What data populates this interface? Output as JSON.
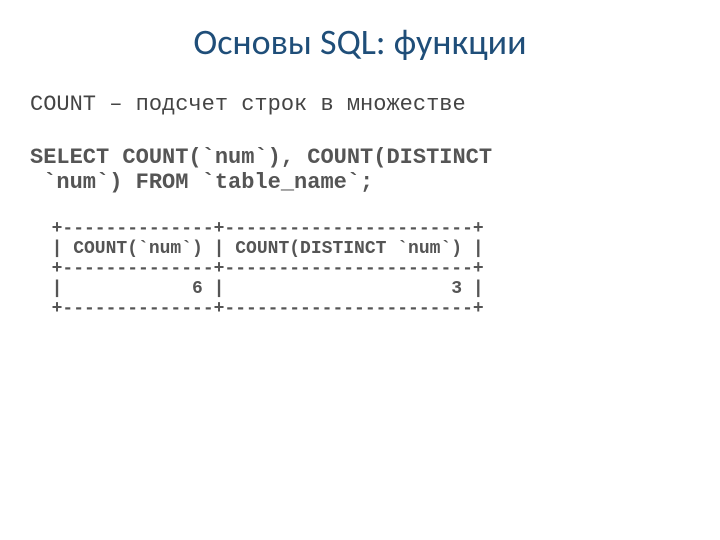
{
  "title": {
    "text": "Основы SQL: функции",
    "color": "#1f4e79",
    "fontsize": 36
  },
  "description": {
    "text": "COUNT – подсчет строк в множестве",
    "color": "#444444",
    "fontsize": 22
  },
  "query": {
    "line1": "SELECT COUNT(`num`), COUNT(DISTINCT",
    "line2": " `num`) FROM `table_name`;",
    "color": "#555555",
    "fontsize": 22
  },
  "result_table": {
    "color": "#555555",
    "fontsize": 18,
    "indent": "  ",
    "border_top": "+--------------+-----------------------+",
    "header_row": "| COUNT(`num`) | COUNT(DISTINCT `num`) |",
    "border_mid": "+--------------+-----------------------+",
    "data_row": "|            6 |                     3 |",
    "border_bottom": "+--------------+-----------------------+",
    "columns": [
      "COUNT(`num`)",
      "COUNT(DISTINCT `num`)"
    ],
    "rows": [
      [
        6,
        3
      ]
    ]
  }
}
